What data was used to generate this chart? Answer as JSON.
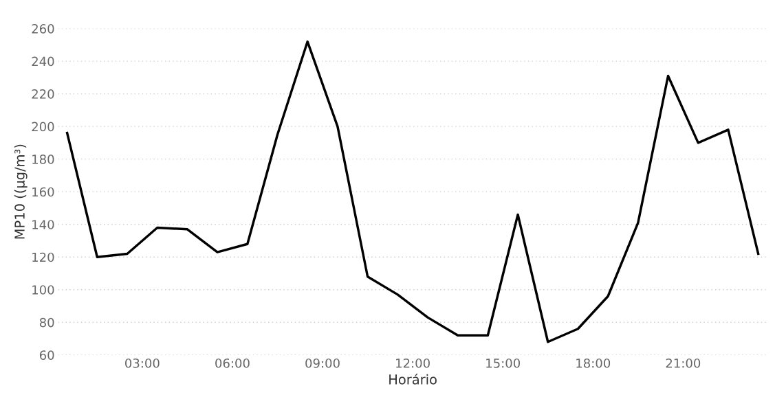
{
  "chart_data": {
    "type": "line",
    "xlabel": "Horário",
    "ylabel": "MP10 ((µg/m³)",
    "x": [
      0.5,
      1.5,
      2.5,
      3.5,
      4.5,
      5.5,
      6.5,
      7.5,
      8.5,
      9.5,
      10.5,
      11.5,
      12.5,
      13.5,
      14.5,
      15.5,
      16.5,
      17.5,
      18.5,
      19.5,
      20.5,
      21.5,
      22.5,
      23.5
    ],
    "series": [
      {
        "color": "#000000",
        "values": [
          196,
          120,
          122,
          138,
          137,
          123,
          128,
          195,
          252,
          200,
          108,
          97,
          83,
          72,
          72,
          146,
          68,
          76,
          96,
          141,
          231,
          190,
          198,
          122
        ]
      }
    ],
    "xlim": [
      0.2,
      23.8
    ],
    "xticks": [
      {
        "value": 3,
        "label": "03:00"
      },
      {
        "value": 6,
        "label": "06:00"
      },
      {
        "value": 9,
        "label": "09:00"
      },
      {
        "value": 12,
        "label": "12:00"
      },
      {
        "value": 15,
        "label": "15:00"
      },
      {
        "value": 18,
        "label": "18:00"
      },
      {
        "value": 21,
        "label": "21:00"
      }
    ],
    "ylim": [
      60,
      260
    ],
    "yticks": [
      60,
      80,
      100,
      120,
      140,
      160,
      180,
      200,
      220,
      240,
      260
    ],
    "grid": "y",
    "marker": "none",
    "line_style": "solid"
  }
}
